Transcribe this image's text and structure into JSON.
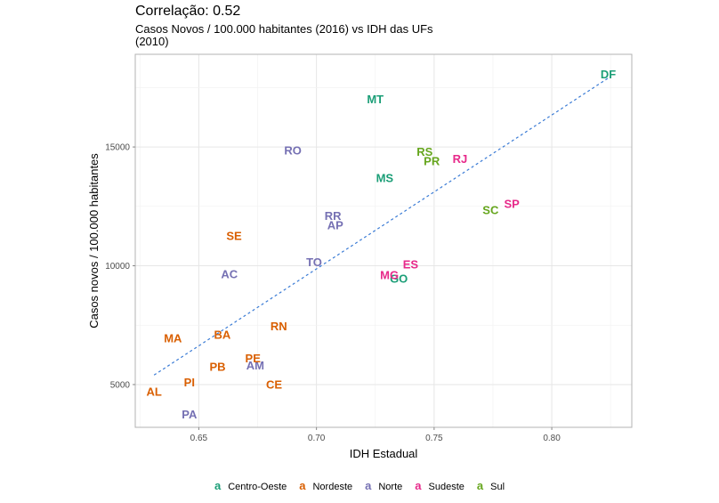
{
  "title": "Correlação: 0.52",
  "subtitle": "Casos Novos / 100.000 habitantes (2016) vs IDH das UFs (2010)",
  "colors": {
    "Centro-Oeste": "#1b9e77",
    "Nordeste": "#d95f02",
    "Norte": "#7570b3",
    "Sudeste": "#e7298a",
    "Sul": "#66a61e",
    "trend": "#3a7bd5"
  },
  "chart_data": {
    "type": "scatter",
    "title": "Correlação: 0.52",
    "subtitle": "Casos Novos / 100.000 habitantes (2016) vs IDH das UFs (2010)",
    "xlabel": "IDH Estadual",
    "ylabel": "Casos novos / 100.000 habitantes",
    "xlim": [
      0.623,
      0.834
    ],
    "ylim": [
      3200,
      18900
    ],
    "xticks": [
      0.65,
      0.7,
      0.75,
      0.8
    ],
    "xtick_labels": [
      "0.65",
      "0.70",
      "0.75",
      "0.80"
    ],
    "yticks": [
      5000,
      10000,
      15000
    ],
    "ytick_labels": [
      "5000",
      "10000",
      "15000"
    ],
    "grid": true,
    "legend_position": "bottom",
    "legend_glyph": "a",
    "legend": [
      "Centro-Oeste",
      "Nordeste",
      "Norte",
      "Sudeste",
      "Sul"
    ],
    "trendline": {
      "type": "linear",
      "x": [
        0.631,
        0.824
      ],
      "y": [
        5400,
        17900
      ]
    },
    "points": [
      {
        "label": "DF",
        "x": 0.824,
        "y": 18050,
        "region": "Centro-Oeste"
      },
      {
        "label": "MT",
        "x": 0.725,
        "y": 17000,
        "region": "Centro-Oeste"
      },
      {
        "label": "MS",
        "x": 0.729,
        "y": 13700,
        "region": "Centro-Oeste"
      },
      {
        "label": "GO",
        "x": 0.735,
        "y": 9450,
        "region": "Centro-Oeste"
      },
      {
        "label": "RS",
        "x": 0.746,
        "y": 14800,
        "region": "Sul"
      },
      {
        "label": "PR",
        "x": 0.749,
        "y": 14400,
        "region": "Sul"
      },
      {
        "label": "SC",
        "x": 0.774,
        "y": 12350,
        "region": "Sul"
      },
      {
        "label": "RJ",
        "x": 0.761,
        "y": 14500,
        "region": "Sudeste"
      },
      {
        "label": "SP",
        "x": 0.783,
        "y": 12600,
        "region": "Sudeste"
      },
      {
        "label": "ES",
        "x": 0.74,
        "y": 10050,
        "region": "Sudeste"
      },
      {
        "label": "MG",
        "x": 0.731,
        "y": 9600,
        "region": "Sudeste"
      },
      {
        "label": "RO",
        "x": 0.69,
        "y": 14850,
        "region": "Norte"
      },
      {
        "label": "RR",
        "x": 0.707,
        "y": 12100,
        "region": "Norte"
      },
      {
        "label": "AP",
        "x": 0.708,
        "y": 11700,
        "region": "Norte"
      },
      {
        "label": "TO",
        "x": 0.699,
        "y": 10150,
        "region": "Norte"
      },
      {
        "label": "AC",
        "x": 0.663,
        "y": 9650,
        "region": "Norte"
      },
      {
        "label": "AM",
        "x": 0.674,
        "y": 5800,
        "region": "Norte"
      },
      {
        "label": "PA",
        "x": 0.646,
        "y": 3750,
        "region": "Norte"
      },
      {
        "label": "SE",
        "x": 0.665,
        "y": 11250,
        "region": "Nordeste"
      },
      {
        "label": "RN",
        "x": 0.684,
        "y": 7450,
        "region": "Nordeste"
      },
      {
        "label": "BA",
        "x": 0.66,
        "y": 7100,
        "region": "Nordeste"
      },
      {
        "label": "MA",
        "x": 0.639,
        "y": 6950,
        "region": "Nordeste"
      },
      {
        "label": "PE",
        "x": 0.673,
        "y": 6100,
        "region": "Nordeste"
      },
      {
        "label": "PB",
        "x": 0.658,
        "y": 5750,
        "region": "Nordeste"
      },
      {
        "label": "PI",
        "x": 0.646,
        "y": 5100,
        "region": "Nordeste"
      },
      {
        "label": "CE",
        "x": 0.682,
        "y": 5000,
        "region": "Nordeste"
      },
      {
        "label": "AL",
        "x": 0.631,
        "y": 4700,
        "region": "Nordeste"
      }
    ]
  }
}
